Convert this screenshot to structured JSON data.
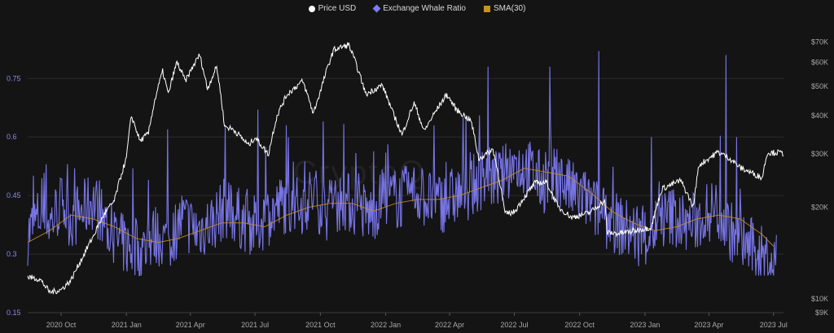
{
  "legend": [
    {
      "label": "Price USD",
      "color": "#ffffff",
      "shape": "circle"
    },
    {
      "label": "Exchange Whale Ratio",
      "color": "#7d7af2",
      "shape": "diamond"
    },
    {
      "label": "SMA(30)",
      "color": "#c9911e",
      "shape": "square"
    }
  ],
  "watermark": "CryptoQ",
  "chart_data": {
    "type": "line",
    "x_axis": {
      "tick_labels": [
        "2020 Oct",
        "2021 Jan",
        "2021 Apr",
        "2021 Jul",
        "2021 Oct",
        "2022 Jan",
        "2022 Apr",
        "2022 Jul",
        "2022 Oct",
        "2023 Jan",
        "2023 Apr",
        "2023 Jul"
      ],
      "range": [
        "2020-08-15",
        "2023-07-15"
      ]
    },
    "y_left": {
      "ticks": [
        0.15,
        0.3,
        0.45,
        0.6,
        0.75
      ],
      "tick_labels": [
        "0.15",
        "0.3",
        "0.45",
        "0.6",
        "0.75"
      ],
      "range": [
        0.15,
        0.88
      ]
    },
    "y_right": {
      "scale": "log",
      "ticks": [
        9000,
        10000,
        20000,
        30000,
        40000,
        50000,
        60000,
        70000
      ],
      "tick_labels": [
        "$9K",
        "$10K",
        "$20K",
        "$30K",
        "$40K",
        "$50K",
        "$60K",
        "$70K"
      ],
      "range": [
        9000,
        78000
      ]
    },
    "series": [
      {
        "name": "Price USD",
        "axis": "right",
        "color": "#ffffff",
        "points": [
          [
            "2020-08-15",
            11800
          ],
          [
            "2020-09-01",
            11600
          ],
          [
            "2020-09-15",
            10500
          ],
          [
            "2020-10-01",
            10700
          ],
          [
            "2020-10-15",
            11500
          ],
          [
            "2020-11-01",
            13800
          ],
          [
            "2020-11-15",
            16000
          ],
          [
            "2020-12-01",
            19000
          ],
          [
            "2020-12-15",
            21000
          ],
          [
            "2021-01-01",
            29000
          ],
          [
            "2021-01-08",
            40000
          ],
          [
            "2021-01-20",
            33000
          ],
          [
            "2021-02-01",
            35000
          ],
          [
            "2021-02-10",
            45000
          ],
          [
            "2021-02-21",
            56000
          ],
          [
            "2021-03-01",
            47000
          ],
          [
            "2021-03-13",
            60000
          ],
          [
            "2021-03-25",
            52000
          ],
          [
            "2021-04-14",
            63500
          ],
          [
            "2021-04-25",
            49000
          ],
          [
            "2021-05-08",
            58000
          ],
          [
            "2021-05-19",
            37000
          ],
          [
            "2021-06-01",
            36000
          ],
          [
            "2021-06-22",
            32000
          ],
          [
            "2021-07-01",
            34000
          ],
          [
            "2021-07-20",
            29800
          ],
          [
            "2021-08-01",
            40000
          ],
          [
            "2021-08-15",
            47000
          ],
          [
            "2021-09-06",
            52000
          ],
          [
            "2021-09-21",
            40700
          ],
          [
            "2021-10-01",
            48000
          ],
          [
            "2021-10-20",
            66000
          ],
          [
            "2021-11-10",
            68500
          ],
          [
            "2021-11-26",
            54000
          ],
          [
            "2021-12-04",
            47000
          ],
          [
            "2021-12-27",
            50500
          ],
          [
            "2022-01-10",
            41500
          ],
          [
            "2022-01-24",
            34500
          ],
          [
            "2022-02-10",
            44000
          ],
          [
            "2022-02-24",
            35500
          ],
          [
            "2022-03-28",
            47000
          ],
          [
            "2022-04-10",
            42000
          ],
          [
            "2022-05-01",
            38500
          ],
          [
            "2022-05-12",
            28800
          ],
          [
            "2022-06-01",
            31000
          ],
          [
            "2022-06-18",
            19000
          ],
          [
            "2022-07-01",
            19300
          ],
          [
            "2022-07-30",
            24000
          ],
          [
            "2022-08-15",
            24200
          ],
          [
            "2022-09-01",
            20000
          ],
          [
            "2022-09-20",
            18500
          ],
          [
            "2022-10-15",
            19200
          ],
          [
            "2022-11-05",
            21000
          ],
          [
            "2022-11-09",
            16500
          ],
          [
            "2022-11-25",
            16400
          ],
          [
            "2022-12-20",
            16800
          ],
          [
            "2023-01-10",
            17200
          ],
          [
            "2023-01-25",
            23000
          ],
          [
            "2023-02-20",
            24500
          ],
          [
            "2023-03-10",
            20000
          ],
          [
            "2023-03-18",
            27500
          ],
          [
            "2023-04-14",
            30400
          ],
          [
            "2023-04-30",
            29000
          ],
          [
            "2023-05-15",
            27000
          ],
          [
            "2023-06-15",
            25000
          ],
          [
            "2023-06-22",
            30200
          ],
          [
            "2023-07-08",
            30300
          ],
          [
            "2023-07-15",
            30000
          ]
        ]
      },
      {
        "name": "Exchange Whale Ratio",
        "axis": "left",
        "color": "#7d7af2",
        "points": [
          [
            "2020-08-15",
            0.35
          ],
          [
            "2020-09-01",
            0.4
          ],
          [
            "2020-09-15",
            0.38
          ],
          [
            "2020-10-01",
            0.43
          ],
          [
            "2020-10-15",
            0.39
          ],
          [
            "2020-11-01",
            0.41
          ],
          [
            "2020-11-15",
            0.44
          ],
          [
            "2020-12-01",
            0.38
          ],
          [
            "2020-12-15",
            0.34
          ],
          [
            "2021-01-01",
            0.32
          ],
          [
            "2021-01-20",
            0.3
          ],
          [
            "2021-02-10",
            0.35
          ],
          [
            "2021-03-01",
            0.33
          ],
          [
            "2021-03-20",
            0.39
          ],
          [
            "2021-04-10",
            0.36
          ],
          [
            "2021-05-01",
            0.38
          ],
          [
            "2021-05-20",
            0.42
          ],
          [
            "2021-06-10",
            0.39
          ],
          [
            "2021-07-01",
            0.37
          ],
          [
            "2021-07-20",
            0.4
          ],
          [
            "2021-08-10",
            0.43
          ],
          [
            "2021-09-01",
            0.42
          ],
          [
            "2021-09-20",
            0.45
          ],
          [
            "2021-10-10",
            0.41
          ],
          [
            "2021-11-01",
            0.44
          ],
          [
            "2021-11-20",
            0.42
          ],
          [
            "2021-12-10",
            0.4
          ],
          [
            "2022-01-01",
            0.45
          ],
          [
            "2022-01-20",
            0.44
          ],
          [
            "2022-02-10",
            0.46
          ],
          [
            "2022-03-01",
            0.44
          ],
          [
            "2022-03-20",
            0.43
          ],
          [
            "2022-04-10",
            0.45
          ],
          [
            "2022-05-01",
            0.47
          ],
          [
            "2022-05-20",
            0.5
          ],
          [
            "2022-06-10",
            0.49
          ],
          [
            "2022-07-01",
            0.53
          ],
          [
            "2022-07-20",
            0.52
          ],
          [
            "2022-08-10",
            0.48
          ],
          [
            "2022-09-01",
            0.5
          ],
          [
            "2022-09-20",
            0.46
          ],
          [
            "2022-10-10",
            0.44
          ],
          [
            "2022-11-01",
            0.4
          ],
          [
            "2022-11-20",
            0.38
          ],
          [
            "2022-12-10",
            0.36
          ],
          [
            "2023-01-01",
            0.34
          ],
          [
            "2023-01-20",
            0.38
          ],
          [
            "2023-02-10",
            0.4
          ],
          [
            "2023-03-01",
            0.37
          ],
          [
            "2023-03-20",
            0.39
          ],
          [
            "2023-04-10",
            0.42
          ],
          [
            "2023-05-01",
            0.36
          ],
          [
            "2023-05-20",
            0.33
          ],
          [
            "2023-06-10",
            0.3
          ],
          [
            "2023-06-25",
            0.28
          ],
          [
            "2023-07-05",
            0.27
          ]
        ],
        "spikes": [
          [
            "2020-09-10",
            0.53
          ],
          [
            "2020-10-20",
            0.52
          ],
          [
            "2021-01-10",
            0.52
          ],
          [
            "2021-02-28",
            0.62
          ],
          [
            "2021-05-20",
            0.63
          ],
          [
            "2021-07-05",
            0.67
          ],
          [
            "2021-10-05",
            0.64
          ],
          [
            "2022-04-20",
            0.65
          ],
          [
            "2022-05-25",
            0.78
          ],
          [
            "2022-08-20",
            0.78
          ],
          [
            "2022-10-28",
            0.82
          ],
          [
            "2023-01-10",
            0.6
          ],
          [
            "2023-04-25",
            0.81
          ],
          [
            "2023-05-10",
            0.6
          ]
        ]
      },
      {
        "name": "SMA(30)",
        "axis": "left",
        "color": "#c9911e",
        "points": [
          [
            "2020-08-15",
            0.33
          ],
          [
            "2020-09-15",
            0.36
          ],
          [
            "2020-10-15",
            0.4
          ],
          [
            "2020-11-15",
            0.39
          ],
          [
            "2020-12-15",
            0.37
          ],
          [
            "2021-01-15",
            0.34
          ],
          [
            "2021-02-15",
            0.33
          ],
          [
            "2021-03-15",
            0.34
          ],
          [
            "2021-04-15",
            0.36
          ],
          [
            "2021-05-15",
            0.38
          ],
          [
            "2021-06-15",
            0.38
          ],
          [
            "2021-07-15",
            0.37
          ],
          [
            "2021-08-15",
            0.4
          ],
          [
            "2021-09-15",
            0.42
          ],
          [
            "2021-10-15",
            0.43
          ],
          [
            "2021-11-15",
            0.43
          ],
          [
            "2021-12-15",
            0.41
          ],
          [
            "2022-01-15",
            0.43
          ],
          [
            "2022-02-15",
            0.44
          ],
          [
            "2022-03-15",
            0.44
          ],
          [
            "2022-04-15",
            0.45
          ],
          [
            "2022-05-15",
            0.47
          ],
          [
            "2022-06-15",
            0.49
          ],
          [
            "2022-07-15",
            0.52
          ],
          [
            "2022-08-15",
            0.51
          ],
          [
            "2022-09-15",
            0.5
          ],
          [
            "2022-10-15",
            0.46
          ],
          [
            "2022-11-15",
            0.41
          ],
          [
            "2022-12-15",
            0.38
          ],
          [
            "2023-01-15",
            0.36
          ],
          [
            "2023-02-15",
            0.37
          ],
          [
            "2023-03-15",
            0.39
          ],
          [
            "2023-04-15",
            0.4
          ],
          [
            "2023-05-15",
            0.39
          ],
          [
            "2023-06-15",
            0.35
          ],
          [
            "2023-07-01",
            0.32
          ]
        ]
      }
    ],
    "grid": true,
    "legend_position": "top-center"
  }
}
